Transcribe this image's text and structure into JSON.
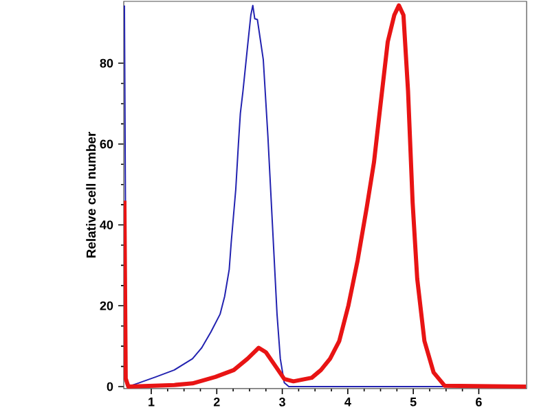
{
  "chart_data": {
    "type": "line",
    "ylabel": "Relative cell number",
    "xlim": [
      0.58,
      6.73
    ],
    "ylim": [
      -0.5,
      95.3
    ],
    "xticks": [
      1,
      2,
      3,
      4,
      5,
      6
    ],
    "yticks": [
      0,
      20,
      40,
      60,
      80
    ],
    "series": [
      {
        "color": "#2222b0",
        "x": [
          0.59,
          0.62,
          0.65,
          0.79,
          1.07,
          1.35,
          1.63,
          1.77,
          1.91,
          2.05,
          2.12,
          2.19,
          2.22,
          2.29,
          2.33,
          2.36,
          2.4,
          2.47,
          2.52,
          2.55,
          2.58,
          2.62,
          2.71,
          2.78,
          2.85,
          2.92,
          2.97,
          3.03,
          3.1,
          6.72
        ],
        "values": [
          94.3,
          0.5,
          0,
          0.8,
          2.4,
          4.1,
          6.9,
          9.6,
          13.5,
          17.9,
          22.3,
          29,
          35.6,
          48.8,
          59.9,
          67.6,
          73.1,
          84.2,
          91.9,
          94.3,
          91,
          90.8,
          80.9,
          62.1,
          40,
          17.9,
          6.9,
          1,
          0,
          0
        ]
      },
      {
        "color": "#e81414",
        "x": [
          0.59,
          0.61,
          0.65,
          1.35,
          1.63,
          1.98,
          2.26,
          2.47,
          2.64,
          2.75,
          2.89,
          3.03,
          3.17,
          3.45,
          3.59,
          3.73,
          3.87,
          4.01,
          4.15,
          4.29,
          4.4,
          4.5,
          4.61,
          4.71,
          4.78,
          4.85,
          4.92,
          4.99,
          5.06,
          5.17,
          5.31,
          5.48,
          6.72
        ],
        "values": [
          46,
          2,
          0,
          0.4,
          0.8,
          2.4,
          4.1,
          6.9,
          9.6,
          8.5,
          5.2,
          1.9,
          1.3,
          2.2,
          4.1,
          6.9,
          11.3,
          20.1,
          31.2,
          44.4,
          55.5,
          69.8,
          85.3,
          91.9,
          94.3,
          91.9,
          73.1,
          45.5,
          26.7,
          11.3,
          3.5,
          0.2,
          0
        ]
      }
    ]
  }
}
